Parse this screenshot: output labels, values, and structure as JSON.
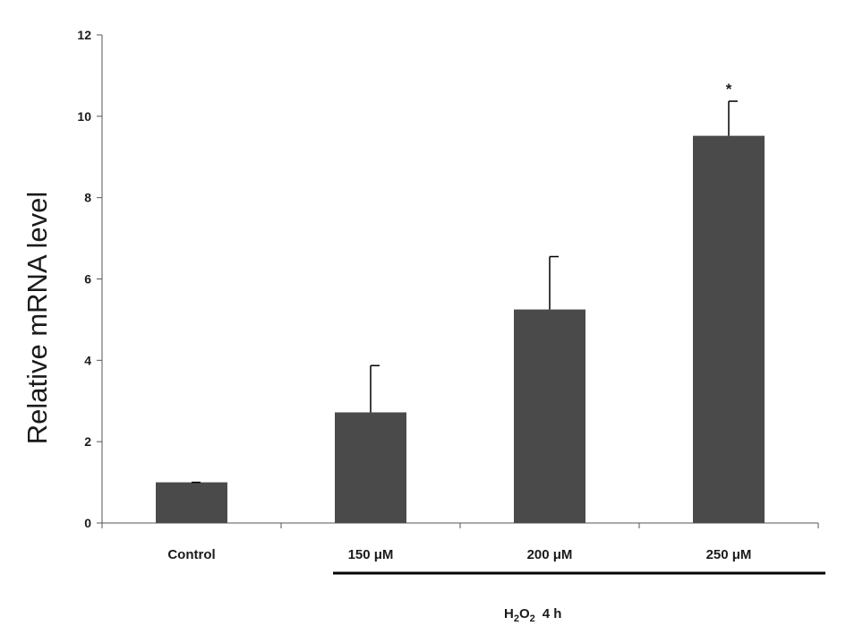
{
  "chart_data": {
    "type": "bar",
    "categories": [
      "Control",
      "150 μM",
      "200 μM",
      "250 μM"
    ],
    "values": [
      1.0,
      2.72,
      5.25,
      9.52
    ],
    "error_upper": [
      0.0,
      1.15,
      1.3,
      0.85
    ],
    "significance": [
      "",
      "",
      "",
      "*"
    ],
    "title": "",
    "xlabel": "",
    "ylabel": "Relative mRNA level",
    "ylim": [
      0,
      12
    ],
    "yticks": [
      0,
      2,
      4,
      6,
      8,
      10,
      12
    ],
    "grid": false,
    "bar_color": "#4a4a4a",
    "treatment_group": {
      "label_main": "H",
      "label_sub1": "2",
      "label_mid": "O",
      "label_sub2": "2",
      "label_tail": "4 h",
      "covers_categories": [
        1,
        2,
        3
      ]
    }
  }
}
